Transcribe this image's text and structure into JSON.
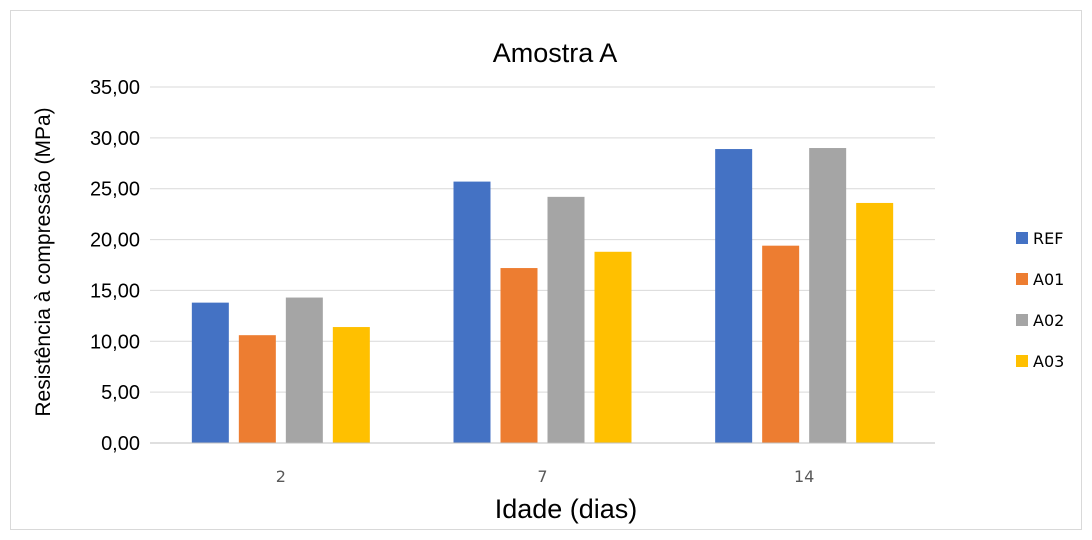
{
  "chart_data": {
    "type": "bar",
    "title": "Amostra A",
    "xlabel": "Idade (dias)",
    "ylabel": "Resistência à compressão (MPa)",
    "categories": [
      "2",
      "7",
      "14"
    ],
    "series": [
      {
        "name": "REF",
        "color": "#4472C4",
        "values": [
          13.8,
          25.7,
          28.9
        ]
      },
      {
        "name": "A01",
        "color": "#ED7D31",
        "values": [
          10.6,
          17.2,
          19.4
        ]
      },
      {
        "name": "A02",
        "color": "#A5A5A5",
        "values": [
          14.3,
          24.2,
          29.0
        ]
      },
      {
        "name": "A03",
        "color": "#FFC000",
        "values": [
          11.4,
          18.8,
          23.6
        ]
      }
    ],
    "ylim": [
      0,
      35
    ],
    "ystep": 5,
    "ytick_labels": [
      "0,00",
      "5,00",
      "10,00",
      "15,00",
      "20,00",
      "25,00",
      "30,00",
      "35,00"
    ],
    "grid": true,
    "legend_position": "right"
  }
}
